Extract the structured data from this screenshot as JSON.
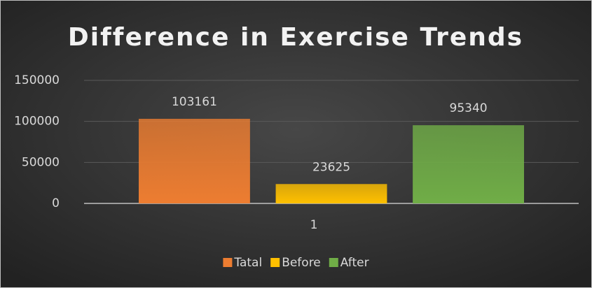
{
  "chart_data": {
    "type": "bar",
    "title": "Difference in Exercise Trends",
    "categories": [
      "1"
    ],
    "series": [
      {
        "name": "Tatal",
        "color": "#ed7d31",
        "values": [
          103161
        ]
      },
      {
        "name": "Before",
        "color": "#ffc000",
        "values": [
          23625
        ]
      },
      {
        "name": "After",
        "color": "#70ad47",
        "values": [
          95340
        ]
      }
    ],
    "ylim": [
      0,
      150000
    ],
    "yticks": [
      0,
      50000,
      100000,
      150000
    ],
    "grid": true,
    "legend": "bottom"
  }
}
